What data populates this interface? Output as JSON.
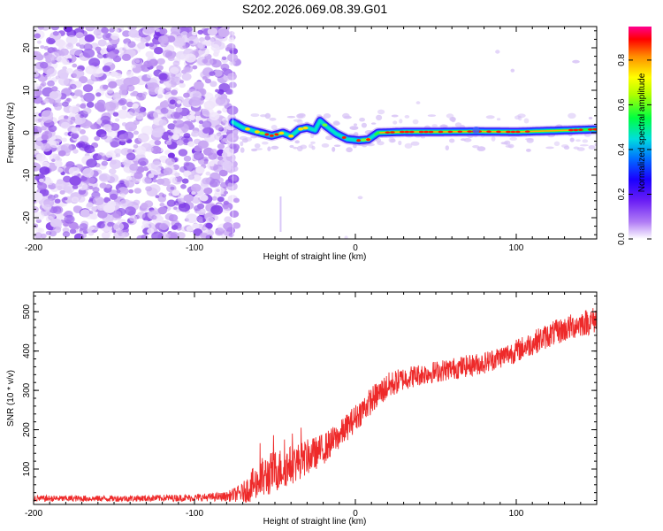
{
  "chart_data": [
    {
      "type": "heatmap",
      "title": "S202.2026.069.08.39.G01",
      "xlabel": "Height of straight line (km)",
      "ylabel": "Frequency (Hz)",
      "xlim": [
        -200,
        150
      ],
      "ylim": [
        -25,
        25
      ],
      "xticks": [
        -200,
        -100,
        0,
        100
      ],
      "xtick_labels": [
        "-200",
        "-100",
        "0",
        "100"
      ],
      "yticks": [
        -20,
        -10,
        0,
        10,
        20
      ],
      "ytick_labels": [
        "-20",
        "-10",
        "0",
        "10",
        "20"
      ],
      "noise_region_x": [
        -200,
        -76
      ],
      "ridge_start_x": -76,
      "ridge": [
        {
          "x": -76,
          "freq": 2.5,
          "amp": 0.35
        },
        {
          "x": -70,
          "freq": 1.2,
          "amp": 0.3
        },
        {
          "x": -62,
          "freq": 0.3,
          "amp": 0.32
        },
        {
          "x": -52,
          "freq": -0.7,
          "amp": 0.3
        },
        {
          "x": -45,
          "freq": 0.0,
          "amp": 0.3
        },
        {
          "x": -40,
          "freq": -0.8,
          "amp": 0.32
        },
        {
          "x": -35,
          "freq": 0.8,
          "amp": 0.4
        },
        {
          "x": -30,
          "freq": 1.2,
          "amp": 0.45
        },
        {
          "x": -25,
          "freq": 0.6,
          "amp": 0.4
        },
        {
          "x": -22,
          "freq": 2.8,
          "amp": 0.5
        },
        {
          "x": -18,
          "freq": 1.5,
          "amp": 0.45
        },
        {
          "x": -12,
          "freq": -0.2,
          "amp": 0.4
        },
        {
          "x": -5,
          "freq": -1.5,
          "amp": 0.4
        },
        {
          "x": 2,
          "freq": -1.8,
          "amp": 0.42
        },
        {
          "x": 8,
          "freq": -1.6,
          "amp": 0.45
        },
        {
          "x": 14,
          "freq": 0.0,
          "amp": 0.6
        },
        {
          "x": 30,
          "freq": 0.2,
          "amp": 0.8
        },
        {
          "x": 50,
          "freq": 0.2,
          "amp": 0.85
        },
        {
          "x": 75,
          "freq": 0.3,
          "amp": 0.8
        },
        {
          "x": 100,
          "freq": 0.2,
          "amp": 0.75
        },
        {
          "x": 125,
          "freq": 0.5,
          "amp": 0.6
        },
        {
          "x": 150,
          "freq": 0.8,
          "amp": 0.5
        }
      ],
      "colorbar": {
        "label": "Normalized spectral amplitude",
        "range": [
          0.0,
          0.95
        ],
        "ticks": [
          0.0,
          0.2,
          0.4,
          0.6,
          0.8
        ],
        "tick_labels": [
          "0.0",
          "0.2",
          "0.4",
          "0.6",
          "0.8"
        ],
        "colormap": [
          "#ffffff",
          "#9a4cf0",
          "#2a00ff",
          "#0070ff",
          "#00e0e0",
          "#00ff40",
          "#a0ff00",
          "#ffff00",
          "#ff9000",
          "#ff0000",
          "#ff0080"
        ]
      }
    },
    {
      "type": "line",
      "xlabel": "Height of straight line (km)",
      "ylabel": "SNR (10 * v/v)",
      "xlim": [
        -200,
        150
      ],
      "ylim": [
        10,
        550
      ],
      "xticks": [
        -200,
        -100,
        0,
        100
      ],
      "xtick_labels": [
        "-200",
        "-100",
        "0",
        "100"
      ],
      "yticks": [
        100,
        200,
        300,
        400,
        500
      ],
      "ytick_labels": [
        "100",
        "200",
        "300",
        "400",
        "500"
      ],
      "line_color": "#ee2a2a",
      "series": [
        {
          "name": "SNR",
          "trend_x": [
            -200,
            -150,
            -100,
            -80,
            -70,
            -60,
            -50,
            -40,
            -30,
            -20,
            -10,
            0,
            10,
            20,
            30,
            40,
            60,
            80,
            100,
            120,
            140,
            150
          ],
          "trend_y": [
            25,
            25,
            27,
            30,
            40,
            70,
            95,
            110,
            130,
            150,
            185,
            230,
            275,
            310,
            330,
            340,
            355,
            370,
            400,
            440,
            470,
            480
          ],
          "noise_amplitude": [
            8,
            8,
            9,
            12,
            25,
            55,
            55,
            50,
            45,
            40,
            35,
            35,
            35,
            35,
            30,
            28,
            28,
            28,
            30,
            32,
            34,
            35
          ]
        }
      ]
    }
  ]
}
